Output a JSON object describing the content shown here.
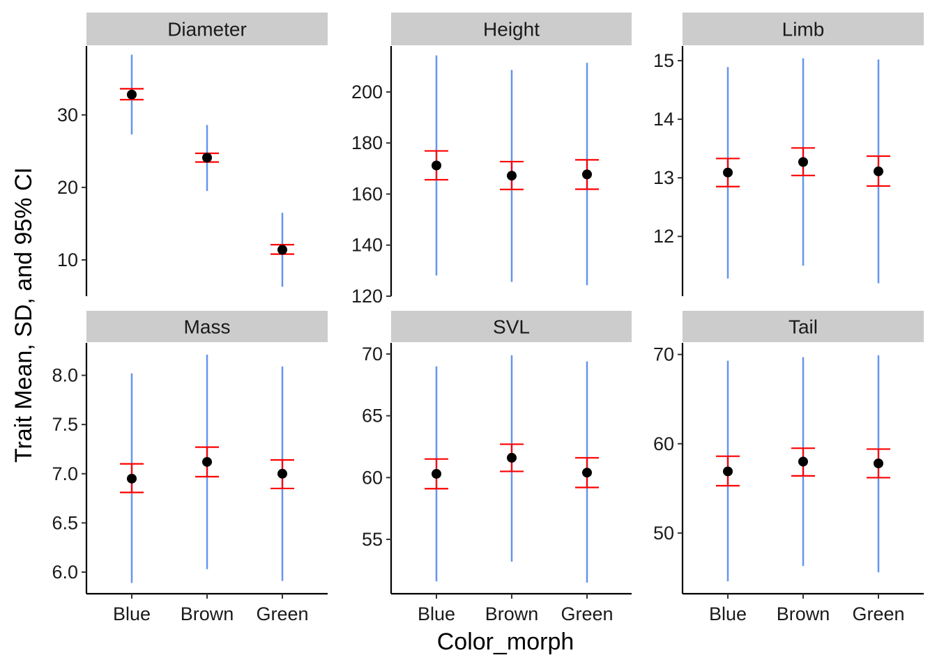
{
  "chart_data": {
    "type": "scatter",
    "facet_layout": "3 columns x 2 rows",
    "xlabel": "Color_morph",
    "ylabel": "Trait Mean, SD, and 95% CI",
    "categories": [
      "Blue",
      "Brown",
      "Green"
    ],
    "colors": {
      "sd": "#6495ED",
      "ci": "#FF0000",
      "mean": "#000000",
      "strip": "#CCCCCC"
    },
    "panels": [
      {
        "title": "Diameter",
        "ylim": [
          5.0,
          39.5
        ],
        "yticks": [
          10,
          20,
          30
        ],
        "show_x_ticks": false,
        "points": [
          {
            "category": "Blue",
            "mean": 32.8,
            "sd_low": 27.3,
            "sd_high": 38.3,
            "ci_low": 32.1,
            "ci_high": 33.6
          },
          {
            "category": "Brown",
            "mean": 24.1,
            "sd_low": 19.5,
            "sd_high": 28.6,
            "ci_low": 23.5,
            "ci_high": 24.7
          },
          {
            "category": "Green",
            "mean": 11.4,
            "sd_low": 6.3,
            "sd_high": 16.5,
            "ci_low": 10.8,
            "ci_high": 12.1
          }
        ]
      },
      {
        "title": "Height",
        "ylim": [
          120,
          218
        ],
        "yticks": [
          120,
          140,
          160,
          180,
          200
        ],
        "show_x_ticks": false,
        "points": [
          {
            "category": "Blue",
            "mean": 171.2,
            "sd_low": 128.1,
            "sd_high": 214.3,
            "ci_low": 165.6,
            "ci_high": 176.9
          },
          {
            "category": "Brown",
            "mean": 167.2,
            "sd_low": 125.6,
            "sd_high": 208.6,
            "ci_low": 161.8,
            "ci_high": 172.7
          },
          {
            "category": "Green",
            "mean": 167.7,
            "sd_low": 124.3,
            "sd_high": 211.4,
            "ci_low": 161.9,
            "ci_high": 173.4
          }
        ]
      },
      {
        "title": "Limb",
        "ylim": [
          10.98,
          15.25
        ],
        "yticks": [
          12,
          13,
          14,
          15
        ],
        "show_x_ticks": false,
        "points": [
          {
            "category": "Blue",
            "mean": 13.09,
            "sd_low": 11.28,
            "sd_high": 14.89,
            "ci_low": 12.85,
            "ci_high": 13.33
          },
          {
            "category": "Brown",
            "mean": 13.27,
            "sd_low": 11.5,
            "sd_high": 15.04,
            "ci_low": 13.04,
            "ci_high": 13.51
          },
          {
            "category": "Green",
            "mean": 13.11,
            "sd_low": 11.2,
            "sd_high": 15.02,
            "ci_low": 12.86,
            "ci_high": 13.37
          }
        ]
      },
      {
        "title": "Mass",
        "ylim": [
          5.78,
          8.33
        ],
        "yticks": [
          6.0,
          6.5,
          7.0,
          7.5,
          8.0
        ],
        "tick_decimals": 1,
        "show_x_ticks": true,
        "points": [
          {
            "category": "Blue",
            "mean": 6.95,
            "sd_low": 5.89,
            "sd_high": 8.02,
            "ci_low": 6.81,
            "ci_high": 7.1
          },
          {
            "category": "Brown",
            "mean": 7.12,
            "sd_low": 6.03,
            "sd_high": 8.21,
            "ci_low": 6.97,
            "ci_high": 7.27
          },
          {
            "category": "Green",
            "mean": 7.0,
            "sd_low": 5.91,
            "sd_high": 8.09,
            "ci_low": 6.85,
            "ci_high": 7.14
          }
        ]
      },
      {
        "title": "SVL",
        "ylim": [
          50.6,
          70.9
        ],
        "yticks": [
          55,
          60,
          65,
          70
        ],
        "show_x_ticks": true,
        "points": [
          {
            "category": "Blue",
            "mean": 60.3,
            "sd_low": 51.6,
            "sd_high": 69.0,
            "ci_low": 59.1,
            "ci_high": 61.5
          },
          {
            "category": "Brown",
            "mean": 61.6,
            "sd_low": 53.2,
            "sd_high": 69.9,
            "ci_low": 60.5,
            "ci_high": 62.7
          },
          {
            "category": "Green",
            "mean": 60.4,
            "sd_low": 51.5,
            "sd_high": 69.4,
            "ci_low": 59.2,
            "ci_high": 61.6
          }
        ]
      },
      {
        "title": "Tail",
        "ylim": [
          43.2,
          71.3
        ],
        "yticks": [
          50,
          60,
          70
        ],
        "show_x_ticks": true,
        "points": [
          {
            "category": "Blue",
            "mean": 56.9,
            "sd_low": 44.6,
            "sd_high": 69.3,
            "ci_low": 55.3,
            "ci_high": 58.6
          },
          {
            "category": "Brown",
            "mean": 58.0,
            "sd_low": 46.3,
            "sd_high": 69.7,
            "ci_low": 56.4,
            "ci_high": 59.5
          },
          {
            "category": "Green",
            "mean": 57.8,
            "sd_low": 45.6,
            "sd_high": 69.9,
            "ci_low": 56.2,
            "ci_high": 59.4
          }
        ]
      }
    ]
  }
}
